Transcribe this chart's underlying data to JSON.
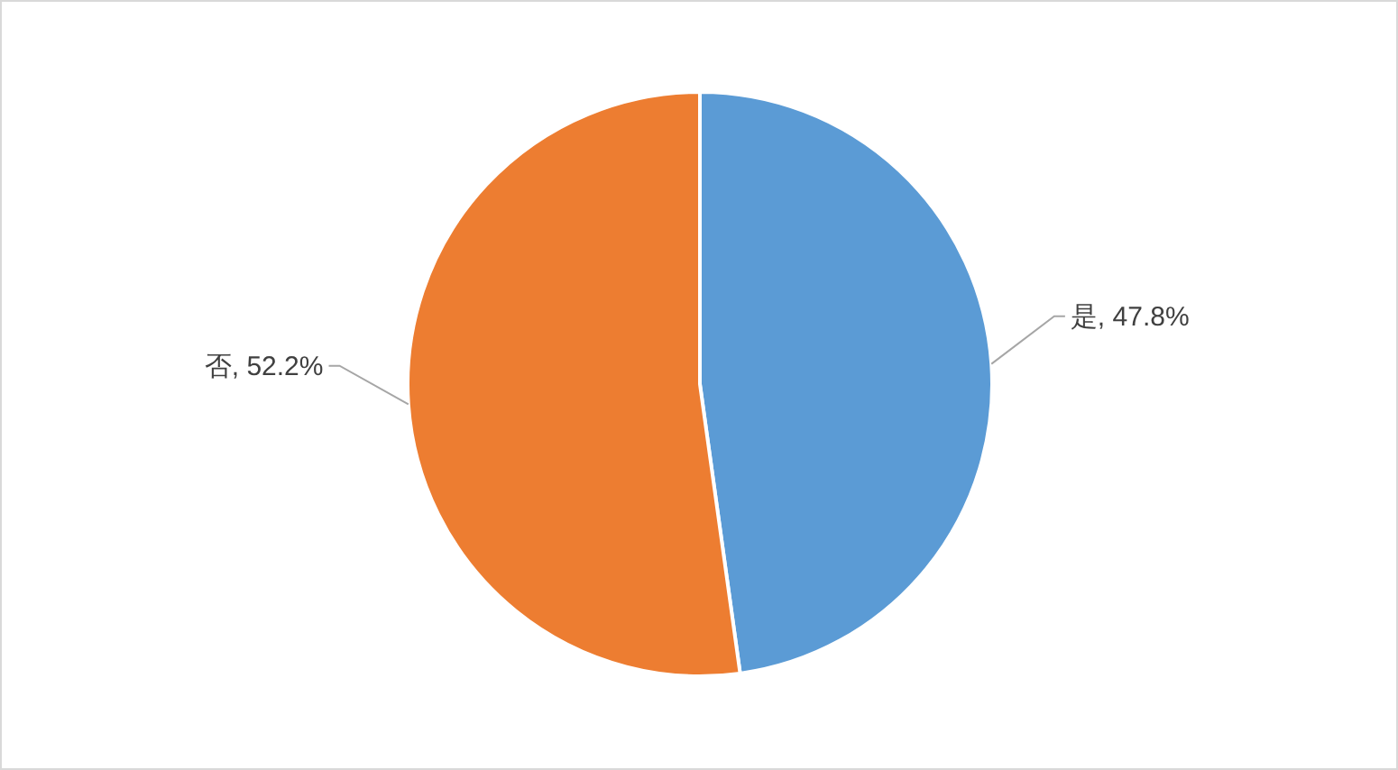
{
  "chart_data": {
    "type": "pie",
    "categories": [
      "是",
      "否"
    ],
    "values": [
      47.8,
      52.2
    ],
    "colors": [
      "#5b9bd5",
      "#ed7d31"
    ],
    "value_labels": [
      ", 47.8%",
      ", 52.2%"
    ]
  }
}
